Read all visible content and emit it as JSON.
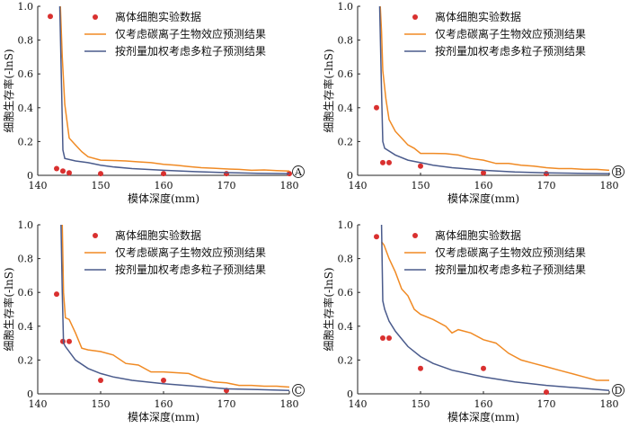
{
  "chart_data": [
    {
      "type": "line",
      "panel_label": "A",
      "xlabel": "模体深度(mm)",
      "ylabel": "细胞生存率(-lnS)",
      "xlim": [
        140,
        180
      ],
      "ylim": [
        0,
        1.0
      ],
      "xticks": [
        "140",
        "150",
        "160",
        "170",
        "180"
      ],
      "yticks": [
        "0",
        "0.2",
        "0.4",
        "0.6",
        "0.8",
        "1.0"
      ],
      "legend_position": "top-right",
      "series": [
        {
          "name": "离体细胞实验数据",
          "kind": "scatter",
          "color": "#d9302f",
          "x": [
            142,
            143,
            144,
            145,
            150,
            160,
            170,
            180
          ],
          "y": [
            0.94,
            0.04,
            0.025,
            0.015,
            0.01,
            0.01,
            0.01,
            0.01
          ]
        },
        {
          "name": "仅考虑碳离子生物效应预测结果",
          "kind": "line",
          "color": "#f08a24",
          "x": [
            143.6,
            143.9,
            144.3,
            145,
            146,
            147,
            148,
            150,
            152,
            154,
            156,
            158,
            160,
            162,
            164,
            166,
            168,
            170,
            172,
            174,
            176,
            178,
            180
          ],
          "y": [
            1.0,
            0.7,
            0.42,
            0.22,
            0.18,
            0.14,
            0.11,
            0.09,
            0.088,
            0.085,
            0.08,
            0.075,
            0.065,
            0.06,
            0.052,
            0.045,
            0.042,
            0.038,
            0.035,
            0.03,
            0.032,
            0.028,
            0.025
          ]
        },
        {
          "name": "按剂量加权考虑多粒子预测结果",
          "kind": "line",
          "color": "#4a5b8c",
          "x": [
            143.5,
            143.8,
            144,
            144.3,
            146,
            148,
            150,
            152,
            155,
            160,
            165,
            170,
            175,
            180
          ],
          "y": [
            1.0,
            0.5,
            0.15,
            0.1,
            0.085,
            0.075,
            0.06,
            0.05,
            0.04,
            0.03,
            0.022,
            0.016,
            0.012,
            0.01
          ]
        }
      ]
    },
    {
      "type": "line",
      "panel_label": "B",
      "xlabel": "模体深度(mm)",
      "ylabel": "细胞生存率(-lnS)",
      "xlim": [
        140,
        180
      ],
      "ylim": [
        0,
        1.0
      ],
      "xticks": [
        "140",
        "150",
        "160",
        "170",
        "180"
      ],
      "yticks": [
        "0",
        "0.2",
        "0.4",
        "0.6",
        "0.8",
        "1.0"
      ],
      "legend_position": "top-right",
      "series": [
        {
          "name": "离体细胞实验数据",
          "kind": "scatter",
          "color": "#d9302f",
          "x": [
            143,
            144,
            145,
            150,
            160,
            170
          ],
          "y": [
            0.4,
            0.075,
            0.075,
            0.055,
            0.015,
            0.01
          ]
        },
        {
          "name": "仅考虑碳离子生物效应预测结果",
          "kind": "line",
          "color": "#f08a24",
          "x": [
            143.6,
            143.8,
            144,
            144.5,
            145,
            146,
            147,
            148,
            149,
            150,
            152,
            154,
            156,
            158,
            160,
            162,
            164,
            166,
            168,
            170,
            172,
            174,
            176,
            178,
            180
          ],
          "y": [
            1.0,
            0.85,
            0.62,
            0.45,
            0.33,
            0.26,
            0.22,
            0.18,
            0.16,
            0.13,
            0.13,
            0.128,
            0.12,
            0.1,
            0.09,
            0.07,
            0.07,
            0.06,
            0.055,
            0.045,
            0.04,
            0.04,
            0.035,
            0.035,
            0.03
          ]
        },
        {
          "name": "按剂量加权考虑多粒子预测结果",
          "kind": "line",
          "color": "#4a5b8c",
          "x": [
            143.5,
            143.8,
            144,
            144.3,
            146,
            148,
            150,
            152,
            155,
            160,
            165,
            170,
            175,
            180
          ],
          "y": [
            1.0,
            0.5,
            0.2,
            0.16,
            0.12,
            0.09,
            0.075,
            0.06,
            0.045,
            0.03,
            0.02,
            0.015,
            0.012,
            0.01
          ]
        }
      ]
    },
    {
      "type": "line",
      "panel_label": "C",
      "xlabel": "模体深度(mm)",
      "ylabel": "细胞生存率(-lnS)",
      "xlim": [
        140,
        180
      ],
      "ylim": [
        0,
        1.0
      ],
      "xticks": [
        "140",
        "150",
        "160",
        "170",
        "180"
      ],
      "yticks": [
        "0",
        "0.2",
        "0.4",
        "0.6",
        "0.8",
        "1.0"
      ],
      "legend_position": "top-right",
      "series": [
        {
          "name": "离体细胞实验数据",
          "kind": "scatter",
          "color": "#d9302f",
          "x": [
            143,
            144,
            145,
            150,
            160,
            170
          ],
          "y": [
            0.59,
            0.31,
            0.31,
            0.08,
            0.08,
            0.02
          ]
        },
        {
          "name": "仅考虑碳离子生物效应预测结果",
          "kind": "line",
          "color": "#f08a24",
          "x": [
            143.9,
            144.1,
            144.4,
            145,
            146,
            147,
            148,
            150,
            152,
            154,
            156,
            158,
            160,
            162,
            164,
            166,
            168,
            170,
            172,
            174,
            176,
            178,
            180
          ],
          "y": [
            1.0,
            0.6,
            0.45,
            0.44,
            0.36,
            0.27,
            0.26,
            0.25,
            0.23,
            0.18,
            0.17,
            0.13,
            0.13,
            0.125,
            0.12,
            0.09,
            0.07,
            0.065,
            0.05,
            0.05,
            0.045,
            0.045,
            0.04
          ]
        },
        {
          "name": "按剂量加权考虑多粒子预测结果",
          "kind": "line",
          "color": "#4a5b8c",
          "x": [
            143.7,
            143.9,
            144.1,
            144.4,
            146,
            148,
            150,
            152,
            155,
            160,
            165,
            170,
            175,
            180
          ],
          "y": [
            1.0,
            0.6,
            0.3,
            0.28,
            0.2,
            0.15,
            0.12,
            0.1,
            0.08,
            0.06,
            0.045,
            0.03,
            0.025,
            0.02
          ]
        }
      ]
    },
    {
      "type": "line",
      "panel_label": "D",
      "xlabel": "模体深度(mm)",
      "ylabel": "细胞生存率(-lnS)",
      "xlim": [
        140,
        180
      ],
      "ylim": [
        0,
        1.0
      ],
      "xticks": [
        "140",
        "150",
        "160",
        "170",
        "180"
      ],
      "yticks": [
        "0",
        "0.2",
        "0.4",
        "0.6",
        "0.8",
        "1.0"
      ],
      "legend_position": "top-right",
      "series": [
        {
          "name": "离体细胞实验数据",
          "kind": "scatter",
          "color": "#d9302f",
          "x": [
            143,
            144,
            145,
            150,
            160,
            170
          ],
          "y": [
            0.93,
            0.33,
            0.33,
            0.15,
            0.15,
            0.01
          ]
        },
        {
          "name": "仅考虑碳离子生物效应预测结果",
          "kind": "line",
          "color": "#f08a24",
          "x": [
            143.8,
            144.2,
            145,
            146,
            147,
            148,
            149,
            150,
            152,
            154,
            155,
            156,
            158,
            160,
            162,
            164,
            166,
            168,
            170,
            172,
            174,
            176,
            178,
            180
          ],
          "y": [
            0.9,
            0.88,
            0.8,
            0.72,
            0.62,
            0.58,
            0.5,
            0.47,
            0.44,
            0.4,
            0.36,
            0.38,
            0.36,
            0.32,
            0.3,
            0.24,
            0.2,
            0.18,
            0.16,
            0.14,
            0.12,
            0.1,
            0.08,
            0.08
          ]
        },
        {
          "name": "按剂量加权考虑多粒子预测结果",
          "kind": "line",
          "color": "#4a5b8c",
          "x": [
            143.8,
            144,
            144.3,
            145,
            146,
            148,
            150,
            152,
            155,
            160,
            165,
            170,
            175,
            180
          ],
          "y": [
            1.0,
            0.55,
            0.5,
            0.43,
            0.37,
            0.28,
            0.22,
            0.18,
            0.14,
            0.1,
            0.07,
            0.05,
            0.035,
            0.02
          ]
        }
      ]
    }
  ]
}
